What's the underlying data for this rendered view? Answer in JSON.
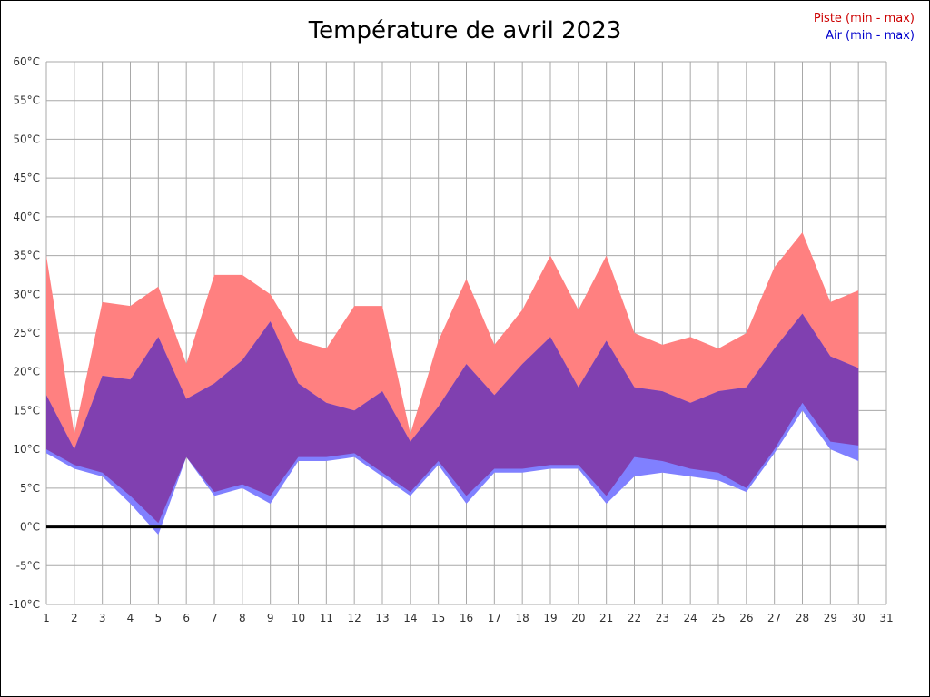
{
  "chart_data": {
    "type": "area",
    "title": "Température de avril 2023",
    "legend_position": "top-right",
    "xlabel": "",
    "ylabel": "",
    "xlim": [
      1,
      31
    ],
    "ylim": [
      -10,
      60
    ],
    "grid": true,
    "xtick_labels": [
      "1",
      "2",
      "3",
      "4",
      "5",
      "6",
      "7",
      "8",
      "9",
      "10",
      "11",
      "12",
      "13",
      "14",
      "15",
      "16",
      "17",
      "18",
      "19",
      "20",
      "21",
      "22",
      "23",
      "24",
      "25",
      "26",
      "27",
      "28",
      "29",
      "30",
      "31"
    ],
    "ytick_labels": [
      "-10°C",
      "-5°C",
      "0°C",
      "5°C",
      "10°C",
      "15°C",
      "20°C",
      "25°C",
      "30°C",
      "35°C",
      "40°C",
      "45°C",
      "50°C",
      "55°C",
      "60°C"
    ],
    "x": [
      1,
      2,
      3,
      4,
      5,
      6,
      7,
      8,
      9,
      10,
      11,
      12,
      13,
      14,
      15,
      16,
      17,
      18,
      19,
      20,
      21,
      22,
      23,
      24,
      25,
      26,
      27,
      28,
      29,
      30
    ],
    "bands": [
      {
        "name": "piste",
        "label": "Piste (min - max)",
        "legend_color": "#cc0000",
        "fill": "#ff8080",
        "min": [
          10,
          8,
          7,
          4,
          0.5,
          9,
          4.5,
          5.5,
          4,
          9,
          9,
          9.5,
          7,
          4.5,
          8.5,
          4,
          7.5,
          7.5,
          8,
          8,
          4,
          9,
          8.5,
          7.5,
          7,
          5,
          10,
          16,
          11,
          10.5
        ],
        "max": [
          35,
          12,
          29,
          28.5,
          31,
          21,
          32.5,
          32.5,
          30,
          24,
          23,
          28.5,
          28.5,
          12,
          24,
          32,
          23.5,
          28,
          35,
          28,
          35,
          25,
          23.5,
          24.5,
          23,
          25,
          33.5,
          38,
          29,
          30.5
        ]
      },
      {
        "name": "air",
        "label": "Air (min - max)",
        "legend_color": "#0000cc",
        "fill": "#8080ff",
        "min": [
          9.5,
          7.5,
          6.5,
          3,
          -1,
          9,
          4,
          5,
          3,
          8.5,
          8.5,
          9,
          6.5,
          4,
          8,
          3,
          7,
          7,
          7.5,
          7.5,
          3,
          6.5,
          7,
          6.5,
          6,
          4.5,
          9.5,
          15,
          10,
          8.5
        ],
        "max": [
          17,
          10,
          19.5,
          19,
          24.5,
          16.5,
          18.5,
          21.5,
          26.5,
          18.5,
          16,
          15,
          17.5,
          11,
          15.5,
          21,
          17,
          21,
          24.5,
          18,
          24,
          18,
          17.5,
          16,
          17.5,
          18,
          23,
          27.5,
          22,
          20.5
        ]
      }
    ],
    "colors": {
      "overlap": "#8040b0",
      "grid": "#a8a8a8",
      "tick_text": "#303030",
      "zero_line": "#000000",
      "background": "#ffffff"
    }
  }
}
